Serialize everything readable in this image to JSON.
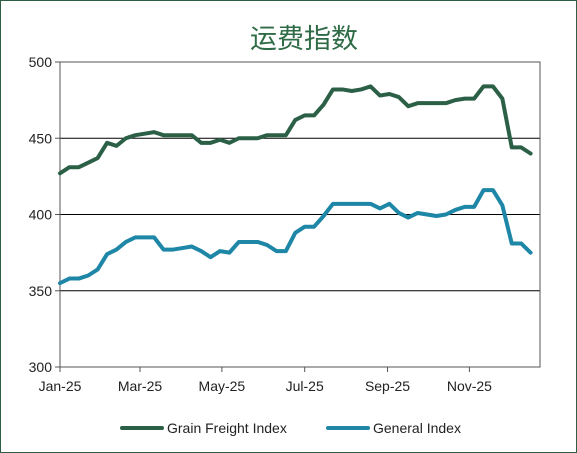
{
  "chart_data": {
    "type": "line",
    "title": "运费指数",
    "xlabel": "",
    "ylabel": "",
    "ylim": [
      300,
      500
    ],
    "yticks": [
      300,
      350,
      400,
      450,
      500
    ],
    "xlim": [
      0,
      51
    ],
    "xtick_labels": [
      {
        "label": "Jan-25",
        "x": 0
      },
      {
        "label": "Mar-25",
        "x": 8.5
      },
      {
        "label": "May-25",
        "x": 17.2
      },
      {
        "label": "Jul-25",
        "x": 26
      },
      {
        "label": "Sep-25",
        "x": 34.8
      },
      {
        "label": "Nov-25",
        "x": 43.5
      }
    ],
    "grid": "horizontal",
    "legend_position": "bottom",
    "series": [
      {
        "name": "Grain Freight Index",
        "color": "#2b6047",
        "values": [
          427,
          431,
          431,
          434,
          437,
          447,
          445,
          450,
          452,
          453,
          454,
          452,
          452,
          452,
          452,
          447,
          447,
          449,
          447,
          450,
          450,
          450,
          452,
          452,
          452,
          462,
          465,
          465,
          472,
          482,
          482,
          481,
          482,
          484,
          478,
          479,
          477,
          471,
          473,
          473,
          473,
          473,
          475,
          476,
          476,
          484,
          484,
          476,
          444,
          444,
          440
        ]
      },
      {
        "name": "General Index",
        "color": "#1e86a6",
        "values": [
          355,
          358,
          358,
          360,
          364,
          374,
          377,
          382,
          385,
          385,
          385,
          377,
          377,
          378,
          379,
          376,
          372,
          376,
          375,
          382,
          382,
          382,
          380,
          376,
          376,
          388,
          392,
          392,
          399,
          407,
          407,
          407,
          407,
          407,
          404,
          407,
          401,
          398,
          401,
          400,
          399,
          400,
          403,
          405,
          405,
          416,
          416,
          406,
          381,
          381,
          375
        ]
      }
    ]
  }
}
